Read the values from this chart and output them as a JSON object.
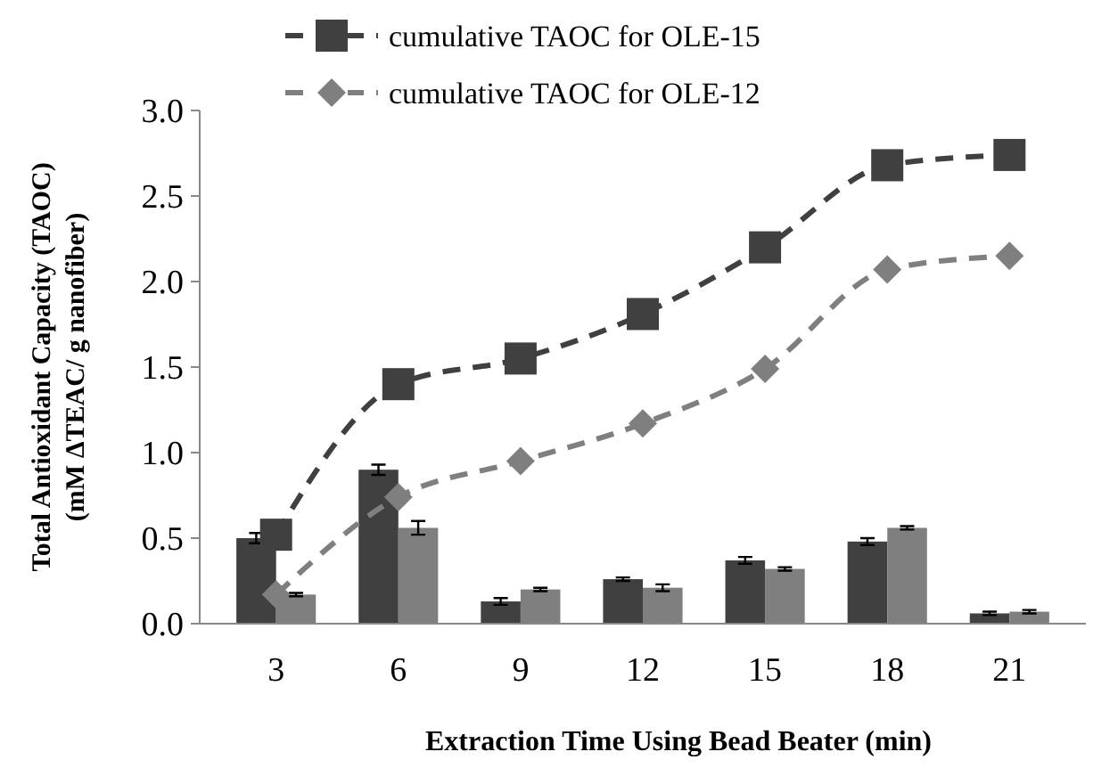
{
  "chart_data": {
    "type": "bar",
    "xlabel": "Extraction Time Using Bead Beater (min)",
    "ylabel": "Total Antioxidant Capacity (TAOC)\n(mM ΔTEAC/ g nanofiber)",
    "categories": [
      "3",
      "6",
      "9",
      "12",
      "15",
      "18",
      "21"
    ],
    "series": [
      {
        "color": "#404040",
        "values": [
          0.5,
          0.9,
          0.13,
          0.26,
          0.37,
          0.48,
          0.06
        ],
        "errors": [
          0.03,
          0.03,
          0.02,
          0.01,
          0.02,
          0.02,
          0.01
        ]
      },
      {
        "color": "#7f7f7f",
        "values": [
          0.17,
          0.56,
          0.2,
          0.21,
          0.32,
          0.56,
          0.07
        ],
        "errors": [
          0.01,
          0.04,
          0.01,
          0.02,
          0.01,
          0.01,
          0.01
        ]
      },
      {
        "type": "line",
        "name": "cumulative TAOC for OLE-15",
        "color": "#404040",
        "marker": "square",
        "line_style": "dashed",
        "values": [
          0.52,
          1.4,
          1.55,
          1.81,
          2.2,
          2.68,
          2.74
        ]
      },
      {
        "type": "line",
        "name": "cumulative TAOC for OLE-12",
        "color": "#7f7f7f",
        "marker": "diamond",
        "line_style": "dashed",
        "values": [
          0.17,
          0.74,
          0.95,
          1.17,
          1.49,
          2.07,
          2.15
        ]
      }
    ],
    "ylim": [
      0,
      3
    ],
    "yticks": [
      {
        "value": 0,
        "label": "0.0"
      },
      {
        "value": 0.5,
        "label": "0.5"
      },
      {
        "value": 1,
        "label": "1.0"
      },
      {
        "value": 1.5,
        "label": "1.5"
      },
      {
        "value": 2,
        "label": "2.0"
      },
      {
        "value": 2.5,
        "label": "2.5"
      },
      {
        "value": 3,
        "label": "3.0"
      }
    ],
    "legend": "top"
  }
}
